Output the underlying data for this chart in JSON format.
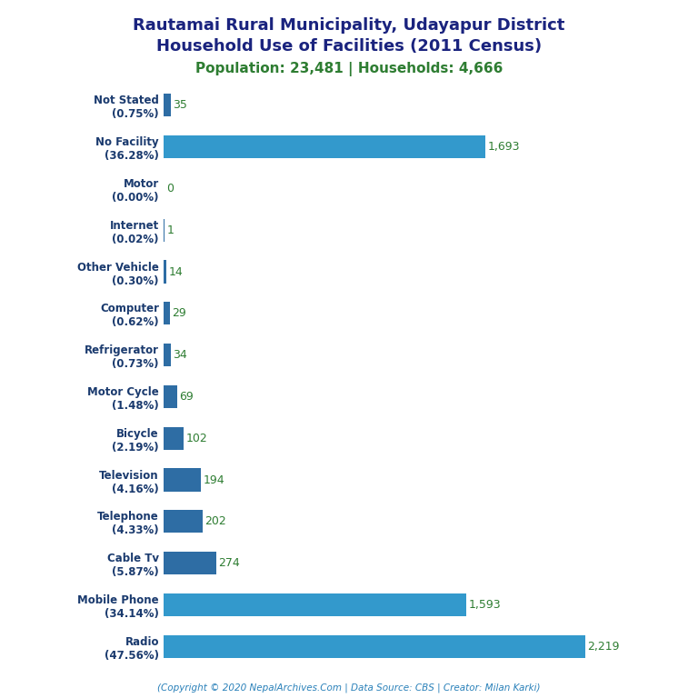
{
  "title_line1": "Rautamai Rural Municipality, Udayapur District",
  "title_line2": "Household Use of Facilities (2011 Census)",
  "subtitle": "Population: 23,481 | Households: 4,666",
  "footer": "(Copyright © 2020 NepalArchives.Com | Data Source: CBS | Creator: Milan Karki)",
  "categories": [
    "Radio\n(47.56%)",
    "Mobile Phone\n(34.14%)",
    "Cable Tv\n(5.87%)",
    "Telephone\n(4.33%)",
    "Television\n(4.16%)",
    "Bicycle\n(2.19%)",
    "Motor Cycle\n(1.48%)",
    "Refrigerator\n(0.73%)",
    "Computer\n(0.62%)",
    "Other Vehicle\n(0.30%)",
    "Internet\n(0.02%)",
    "Motor\n(0.00%)",
    "No Facility\n(36.28%)",
    "Not Stated\n(0.75%)"
  ],
  "values": [
    2219,
    1593,
    274,
    202,
    194,
    102,
    69,
    34,
    29,
    14,
    1,
    0,
    1693,
    35
  ],
  "bar_colors": [
    "#3399cc",
    "#3399cc",
    "#2e6da4",
    "#2e6da4",
    "#2e6da4",
    "#2e6da4",
    "#2e6da4",
    "#2e6da4",
    "#2e6da4",
    "#2e6da4",
    "#2e6da4",
    "#2e6da4",
    "#3399cc",
    "#2e6da4"
  ],
  "title_color": "#1a237e",
  "subtitle_color": "#2e7d32",
  "label_color": "#1a3a6e",
  "value_color": "#2e7d32",
  "footer_color": "#2980b9",
  "background_color": "#ffffff",
  "xlim": [
    0,
    2500
  ],
  "title_fontsize": 13,
  "subtitle_fontsize": 11,
  "label_fontsize": 8.5,
  "value_fontsize": 9,
  "footer_fontsize": 7.5,
  "bar_height": 0.55
}
